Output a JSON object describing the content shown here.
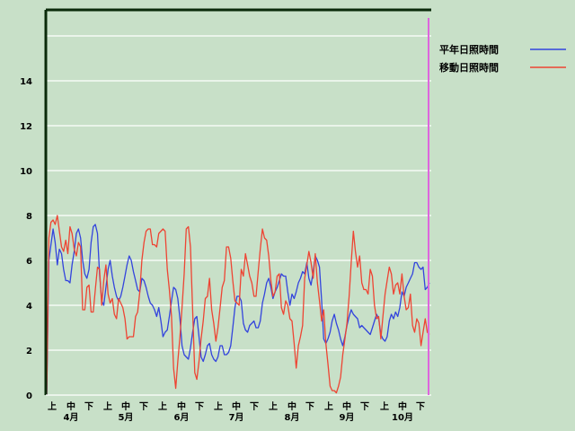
{
  "chart_data": {
    "type": "line",
    "ylim": [
      0,
      16
    ],
    "yticks": [
      0,
      2,
      4,
      6,
      8,
      10,
      12,
      14
    ],
    "grid": true,
    "legend_position": "top-right",
    "x_sub_labels": [
      "上",
      "中",
      "下",
      "上",
      "中",
      "下",
      "上",
      "中",
      "下",
      "上",
      "中",
      "下",
      "上",
      "中",
      "下",
      "上",
      "中",
      "下",
      "上",
      "中",
      "下"
    ],
    "months": [
      "4月",
      "5月",
      "6月",
      "7月",
      "8月",
      "9月",
      "10月"
    ],
    "series": [
      {
        "name": "平年日照時間",
        "color": "#3344dd",
        "values": [
          0,
          6.0,
          6.7,
          7.4,
          6.8,
          5.8,
          6.5,
          6.3,
          5.6,
          5.1,
          5.1,
          5.0,
          5.8,
          6.4,
          7.2,
          7.4,
          7.0,
          6.0,
          5.4,
          5.2,
          5.6,
          6.8,
          7.5,
          7.6,
          7.2,
          5.4,
          4.2,
          4.0,
          4.8,
          5.6,
          6.0,
          5.3,
          4.8,
          4.4,
          4.2,
          4.4,
          4.8,
          5.3,
          5.8,
          6.2,
          6.0,
          5.5,
          5.1,
          4.7,
          4.6,
          5.2,
          5.1,
          4.8,
          4.4,
          4.1,
          4.0,
          3.8,
          3.5,
          3.9,
          3.3,
          2.6,
          2.8,
          2.9,
          3.5,
          4.2,
          4.8,
          4.7,
          4.3,
          3.4,
          2.2,
          1.8,
          1.7,
          1.6,
          2.1,
          2.8,
          3.4,
          3.5,
          2.6,
          1.7,
          1.5,
          1.8,
          2.2,
          2.3,
          1.8,
          1.6,
          1.5,
          1.7,
          2.2,
          2.2,
          1.8,
          1.8,
          1.9,
          2.2,
          3.0,
          3.9,
          4.4,
          4.4,
          4.2,
          3.2,
          2.9,
          2.8,
          3.1,
          3.2,
          3.3,
          3.0,
          3.0,
          3.3,
          4.1,
          4.5,
          5.0,
          5.2,
          4.8,
          4.3,
          4.6,
          4.8,
          5.1,
          5.4,
          5.3,
          5.3,
          4.6,
          4.0,
          4.5,
          4.3,
          4.6,
          5.0,
          5.2,
          5.5,
          5.4,
          5.9,
          5.2,
          4.9,
          5.5,
          6.2,
          6.0,
          5.7,
          4.2,
          2.5,
          2.3,
          2.5,
          2.8,
          3.3,
          3.6,
          3.2,
          2.9,
          2.5,
          2.2,
          2.6,
          3.1,
          3.5,
          3.8,
          3.6,
          3.5,
          3.4,
          3.0,
          3.1,
          3.0,
          2.9,
          2.8,
          2.7,
          3.0,
          3.3,
          3.6,
          3.4,
          2.7,
          2.5,
          2.4,
          2.6,
          3.3,
          3.6,
          3.4,
          3.7,
          3.5,
          3.9,
          4.6,
          4.4,
          4.8,
          5.0,
          5.2,
          5.4,
          5.9,
          5.9,
          5.7,
          5.6,
          5.7,
          4.7,
          4.8,
          5.0
        ]
      },
      {
        "name": "移動日照時間",
        "color": "#ee4433",
        "values": [
          0,
          7.0,
          7.7,
          7.8,
          7.6,
          8.0,
          7.3,
          6.6,
          6.4,
          6.9,
          6.3,
          7.5,
          7.2,
          6.5,
          6.2,
          6.8,
          6.6,
          3.8,
          3.8,
          4.8,
          4.9,
          3.7,
          3.7,
          4.7,
          5.7,
          5.6,
          4.0,
          5.1,
          5.8,
          4.5,
          4.1,
          4.3,
          3.6,
          3.4,
          4.3,
          4.1,
          3.9,
          3.4,
          2.5,
          2.6,
          2.6,
          2.6,
          3.5,
          3.7,
          4.6,
          6.0,
          6.8,
          7.3,
          7.4,
          7.4,
          6.7,
          6.7,
          6.6,
          7.2,
          7.3,
          7.4,
          7.3,
          5.6,
          4.7,
          3.5,
          1.2,
          0.3,
          1.5,
          2.6,
          3.9,
          5.4,
          7.4,
          7.5,
          6.6,
          3.8,
          1.0,
          0.7,
          1.5,
          2.5,
          3.3,
          4.3,
          4.4,
          5.2,
          3.8,
          3.2,
          2.4,
          3.0,
          3.9,
          4.8,
          5.1,
          6.6,
          6.6,
          6.1,
          5.1,
          4.2,
          4.1,
          4.0,
          5.6,
          5.3,
          6.3,
          5.8,
          5.3,
          5.0,
          4.4,
          4.4,
          5.5,
          6.5,
          7.4,
          7.0,
          6.9,
          6.2,
          5.1,
          4.4,
          4.6,
          5.3,
          5.4,
          3.9,
          3.6,
          4.2,
          4.0,
          3.4,
          3.3,
          2.3,
          1.2,
          2.2,
          2.6,
          3.1,
          5.2,
          5.8,
          6.4,
          5.9,
          5.2,
          6.3,
          5.0,
          4.2,
          3.3,
          3.8,
          2.3,
          1.4,
          0.4,
          0.2,
          0.2,
          0.1,
          0.4,
          0.8,
          1.8,
          2.5,
          3.2,
          4.4,
          5.9,
          7.3,
          6.4,
          5.7,
          6.2,
          5.0,
          4.7,
          4.7,
          4.5,
          5.6,
          5.3,
          4.0,
          3.4,
          3.5,
          2.5,
          3.5,
          4.5,
          5.1,
          5.7,
          5.4,
          4.5,
          4.9,
          5.0,
          4.5,
          5.4,
          4.4,
          3.8,
          3.9,
          4.5,
          3.1,
          2.8,
          3.4,
          3.2,
          2.2,
          2.8,
          3.4,
          2.8,
          2.7
        ]
      }
    ]
  }
}
